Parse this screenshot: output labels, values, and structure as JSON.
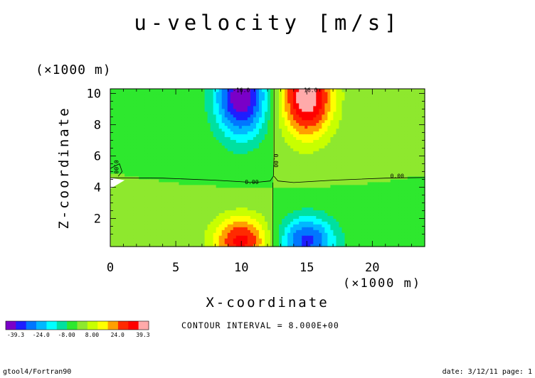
{
  "chart_data": {
    "type": "heatmap",
    "title": "u-velocity [m/s]",
    "xlabel": "X-coordinate",
    "ylabel": "Z-coordinate",
    "x_unit_label": "(×1000 m)",
    "y_unit_label": "(×1000 m)",
    "xlim": [
      0,
      24
    ],
    "ylim": [
      0.2,
      10.3
    ],
    "x_ticks": [
      {
        "value": 0,
        "label": "0"
      },
      {
        "value": 5,
        "label": "5"
      },
      {
        "value": 10,
        "label": "10"
      },
      {
        "value": 15,
        "label": "15"
      },
      {
        "value": 20,
        "label": "20"
      }
    ],
    "y_ticks": [
      {
        "value": 2,
        "label": "2"
      },
      {
        "value": 4,
        "label": "4"
      },
      {
        "value": 6,
        "label": "6"
      },
      {
        "value": 8,
        "label": "8"
      },
      {
        "value": 10,
        "label": "10"
      }
    ],
    "contour_interval": 8,
    "contour_labels": [
      {
        "text": "-16.0",
        "x": 10.0,
        "y": 10.1
      },
      {
        "text": "16.0",
        "x": 15.3,
        "y": 10.1
      },
      {
        "text": "0.00",
        "x": 10.8,
        "y": 4.2
      },
      {
        "text": "0.00",
        "x": 21.9,
        "y": 4.6
      },
      {
        "text": "0.00",
        "x": 0.3,
        "y": 5.3
      },
      {
        "text": "0.00",
        "x": 12.5,
        "y": 5.7
      }
    ],
    "field_peaks": [
      {
        "label": "upper negative jet",
        "x": 10.0,
        "y": 9.8,
        "value": -39.3
      },
      {
        "label": "upper positive jet",
        "x": 15.0,
        "y": 9.8,
        "value": 39.3
      },
      {
        "label": "lower positive jet",
        "x": 10.0,
        "y": 0.6,
        "value": 30
      },
      {
        "label": "lower negative jet",
        "x": 15.0,
        "y": 0.6,
        "value": -30
      }
    ],
    "colorbar": {
      "colors": [
        "#7a00c8",
        "#1e1eff",
        "#0077ff",
        "#00b8ff",
        "#00ffff",
        "#00e0a0",
        "#2ee82e",
        "#8ee82e",
        "#c8ff00",
        "#ffff00",
        "#ff9f00",
        "#ff2a00",
        "#ff0000",
        "#ffaaaa"
      ],
      "tick_labels": [
        "-39.3",
        "-24.0",
        "-8.00",
        "8.00",
        "24.0",
        "39.3"
      ]
    }
  },
  "info": {
    "contour_text": "CONTOUR INTERVAL = 8.000E+00",
    "footer_left": "gtool4/Fortran90",
    "footer_right": "date: 3/12/11 page: 1"
  }
}
